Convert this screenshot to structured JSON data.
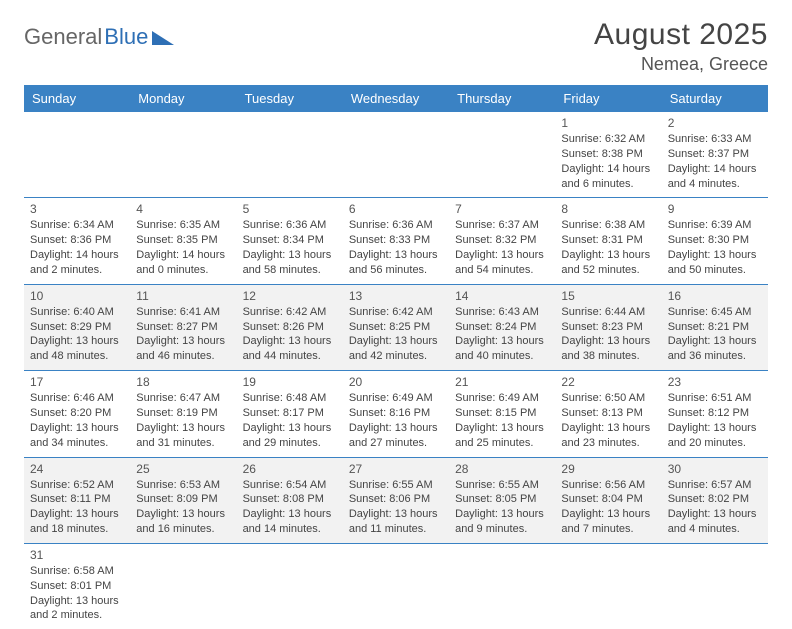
{
  "logo": {
    "gray": "General",
    "blue": "Blue"
  },
  "title": {
    "month": "August 2025",
    "location": "Nemea, Greece"
  },
  "colors": {
    "header_bg": "#3a82c4",
    "header_text": "#ffffff",
    "row_alt_bg": "#f2f2f2",
    "border": "#3a82c4",
    "text": "#444444",
    "logo_blue": "#2e6fb5"
  },
  "weekdays": [
    "Sunday",
    "Monday",
    "Tuesday",
    "Wednesday",
    "Thursday",
    "Friday",
    "Saturday"
  ],
  "weeks": [
    [
      null,
      null,
      null,
      null,
      null,
      {
        "n": "1",
        "sr": "Sunrise: 6:32 AM",
        "ss": "Sunset: 8:38 PM",
        "dl": "Daylight: 14 hours and 6 minutes."
      },
      {
        "n": "2",
        "sr": "Sunrise: 6:33 AM",
        "ss": "Sunset: 8:37 PM",
        "dl": "Daylight: 14 hours and 4 minutes."
      }
    ],
    [
      {
        "n": "3",
        "sr": "Sunrise: 6:34 AM",
        "ss": "Sunset: 8:36 PM",
        "dl": "Daylight: 14 hours and 2 minutes."
      },
      {
        "n": "4",
        "sr": "Sunrise: 6:35 AM",
        "ss": "Sunset: 8:35 PM",
        "dl": "Daylight: 14 hours and 0 minutes."
      },
      {
        "n": "5",
        "sr": "Sunrise: 6:36 AM",
        "ss": "Sunset: 8:34 PM",
        "dl": "Daylight: 13 hours and 58 minutes."
      },
      {
        "n": "6",
        "sr": "Sunrise: 6:36 AM",
        "ss": "Sunset: 8:33 PM",
        "dl": "Daylight: 13 hours and 56 minutes."
      },
      {
        "n": "7",
        "sr": "Sunrise: 6:37 AM",
        "ss": "Sunset: 8:32 PM",
        "dl": "Daylight: 13 hours and 54 minutes."
      },
      {
        "n": "8",
        "sr": "Sunrise: 6:38 AM",
        "ss": "Sunset: 8:31 PM",
        "dl": "Daylight: 13 hours and 52 minutes."
      },
      {
        "n": "9",
        "sr": "Sunrise: 6:39 AM",
        "ss": "Sunset: 8:30 PM",
        "dl": "Daylight: 13 hours and 50 minutes."
      }
    ],
    [
      {
        "n": "10",
        "sr": "Sunrise: 6:40 AM",
        "ss": "Sunset: 8:29 PM",
        "dl": "Daylight: 13 hours and 48 minutes."
      },
      {
        "n": "11",
        "sr": "Sunrise: 6:41 AM",
        "ss": "Sunset: 8:27 PM",
        "dl": "Daylight: 13 hours and 46 minutes."
      },
      {
        "n": "12",
        "sr": "Sunrise: 6:42 AM",
        "ss": "Sunset: 8:26 PM",
        "dl": "Daylight: 13 hours and 44 minutes."
      },
      {
        "n": "13",
        "sr": "Sunrise: 6:42 AM",
        "ss": "Sunset: 8:25 PM",
        "dl": "Daylight: 13 hours and 42 minutes."
      },
      {
        "n": "14",
        "sr": "Sunrise: 6:43 AM",
        "ss": "Sunset: 8:24 PM",
        "dl": "Daylight: 13 hours and 40 minutes."
      },
      {
        "n": "15",
        "sr": "Sunrise: 6:44 AM",
        "ss": "Sunset: 8:23 PM",
        "dl": "Daylight: 13 hours and 38 minutes."
      },
      {
        "n": "16",
        "sr": "Sunrise: 6:45 AM",
        "ss": "Sunset: 8:21 PM",
        "dl": "Daylight: 13 hours and 36 minutes."
      }
    ],
    [
      {
        "n": "17",
        "sr": "Sunrise: 6:46 AM",
        "ss": "Sunset: 8:20 PM",
        "dl": "Daylight: 13 hours and 34 minutes."
      },
      {
        "n": "18",
        "sr": "Sunrise: 6:47 AM",
        "ss": "Sunset: 8:19 PM",
        "dl": "Daylight: 13 hours and 31 minutes."
      },
      {
        "n": "19",
        "sr": "Sunrise: 6:48 AM",
        "ss": "Sunset: 8:17 PM",
        "dl": "Daylight: 13 hours and 29 minutes."
      },
      {
        "n": "20",
        "sr": "Sunrise: 6:49 AM",
        "ss": "Sunset: 8:16 PM",
        "dl": "Daylight: 13 hours and 27 minutes."
      },
      {
        "n": "21",
        "sr": "Sunrise: 6:49 AM",
        "ss": "Sunset: 8:15 PM",
        "dl": "Daylight: 13 hours and 25 minutes."
      },
      {
        "n": "22",
        "sr": "Sunrise: 6:50 AM",
        "ss": "Sunset: 8:13 PM",
        "dl": "Daylight: 13 hours and 23 minutes."
      },
      {
        "n": "23",
        "sr": "Sunrise: 6:51 AM",
        "ss": "Sunset: 8:12 PM",
        "dl": "Daylight: 13 hours and 20 minutes."
      }
    ],
    [
      {
        "n": "24",
        "sr": "Sunrise: 6:52 AM",
        "ss": "Sunset: 8:11 PM",
        "dl": "Daylight: 13 hours and 18 minutes."
      },
      {
        "n": "25",
        "sr": "Sunrise: 6:53 AM",
        "ss": "Sunset: 8:09 PM",
        "dl": "Daylight: 13 hours and 16 minutes."
      },
      {
        "n": "26",
        "sr": "Sunrise: 6:54 AM",
        "ss": "Sunset: 8:08 PM",
        "dl": "Daylight: 13 hours and 14 minutes."
      },
      {
        "n": "27",
        "sr": "Sunrise: 6:55 AM",
        "ss": "Sunset: 8:06 PM",
        "dl": "Daylight: 13 hours and 11 minutes."
      },
      {
        "n": "28",
        "sr": "Sunrise: 6:55 AM",
        "ss": "Sunset: 8:05 PM",
        "dl": "Daylight: 13 hours and 9 minutes."
      },
      {
        "n": "29",
        "sr": "Sunrise: 6:56 AM",
        "ss": "Sunset: 8:04 PM",
        "dl": "Daylight: 13 hours and 7 minutes."
      },
      {
        "n": "30",
        "sr": "Sunrise: 6:57 AM",
        "ss": "Sunset: 8:02 PM",
        "dl": "Daylight: 13 hours and 4 minutes."
      }
    ],
    [
      {
        "n": "31",
        "sr": "Sunrise: 6:58 AM",
        "ss": "Sunset: 8:01 PM",
        "dl": "Daylight: 13 hours and 2 minutes."
      },
      null,
      null,
      null,
      null,
      null,
      null
    ]
  ]
}
